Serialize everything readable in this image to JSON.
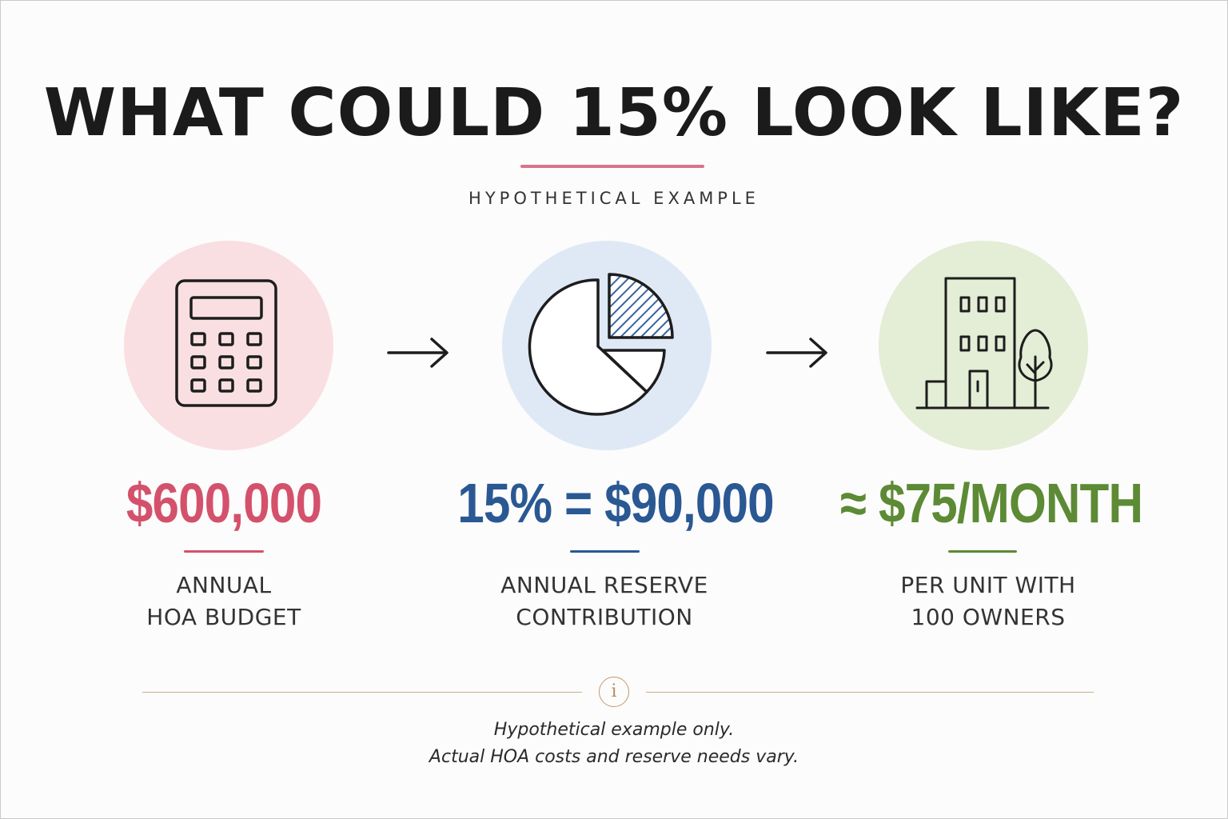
{
  "title": "WHAT COULD 15% LOOK LIKE?",
  "subtitle": "HYPOTHETICAL EXAMPLE",
  "colors": {
    "pink": "#d4516c",
    "blue": "#2a5893",
    "green": "#5d8a35",
    "gold": "#c39a6b"
  },
  "steps": [
    {
      "icon": "calculator-icon",
      "value": "$600,000",
      "label_lines": [
        "ANNUAL",
        "HOA BUDGET"
      ]
    },
    {
      "icon": "pie-chart-icon",
      "value": "15% = $90,000",
      "label_lines": [
        "ANNUAL RESERVE",
        "CONTRIBUTION"
      ]
    },
    {
      "icon": "building-tree-icon",
      "value": "≈ $75/MONTH",
      "label_lines": [
        "PER UNIT WITH",
        "100 OWNERS"
      ]
    }
  ],
  "arrows": [
    "arrow-right-icon",
    "arrow-right-icon"
  ],
  "footer": {
    "icon": "info-icon",
    "icon_glyph": "i",
    "lines": [
      "Hypothetical example only.",
      "Actual HOA costs and reserve needs vary."
    ]
  }
}
